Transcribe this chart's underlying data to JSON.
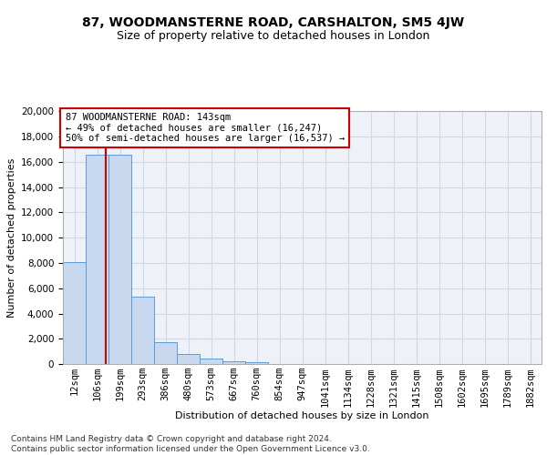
{
  "title": "87, WOODMANSTERNE ROAD, CARSHALTON, SM5 4JW",
  "subtitle": "Size of property relative to detached houses in London",
  "xlabel": "Distribution of detached houses by size in London",
  "ylabel": "Number of detached properties",
  "bar_values": [
    8100,
    16600,
    16600,
    5350,
    1750,
    800,
    400,
    220,
    180,
    0,
    0,
    0,
    0,
    0,
    0,
    0,
    0,
    0,
    0,
    0,
    0
  ],
  "bar_labels": [
    "12sqm",
    "106sqm",
    "199sqm",
    "293sqm",
    "386sqm",
    "480sqm",
    "573sqm",
    "667sqm",
    "760sqm",
    "854sqm",
    "947sqm",
    "1041sqm",
    "1134sqm",
    "1228sqm",
    "1321sqm",
    "1415sqm",
    "1508sqm",
    "1602sqm",
    "1695sqm",
    "1789sqm",
    "1882sqm"
  ],
  "bar_color": "#c8d8ee",
  "bar_edge_color": "#5b9bd5",
  "vline_x": 1.37,
  "vline_color": "#cc0000",
  "annotation_text": "87 WOODMANSTERNE ROAD: 143sqm\n← 49% of detached houses are smaller (16,247)\n50% of semi-detached houses are larger (16,537) →",
  "annotation_box_color": "#ffffff",
  "annotation_box_edge": "#cc0000",
  "ylim": [
    0,
    20000
  ],
  "yticks": [
    0,
    2000,
    4000,
    6000,
    8000,
    10000,
    12000,
    14000,
    16000,
    18000,
    20000
  ],
  "grid_color": "#d0d8e4",
  "plot_bg_color": "#eef2f8",
  "footer": "Contains HM Land Registry data © Crown copyright and database right 2024.\nContains public sector information licensed under the Open Government Licence v3.0.",
  "title_fontsize": 10,
  "subtitle_fontsize": 9,
  "xlabel_fontsize": 8,
  "ylabel_fontsize": 8,
  "tick_fontsize": 7.5,
  "annotation_fontsize": 7.5,
  "footer_fontsize": 6.5
}
